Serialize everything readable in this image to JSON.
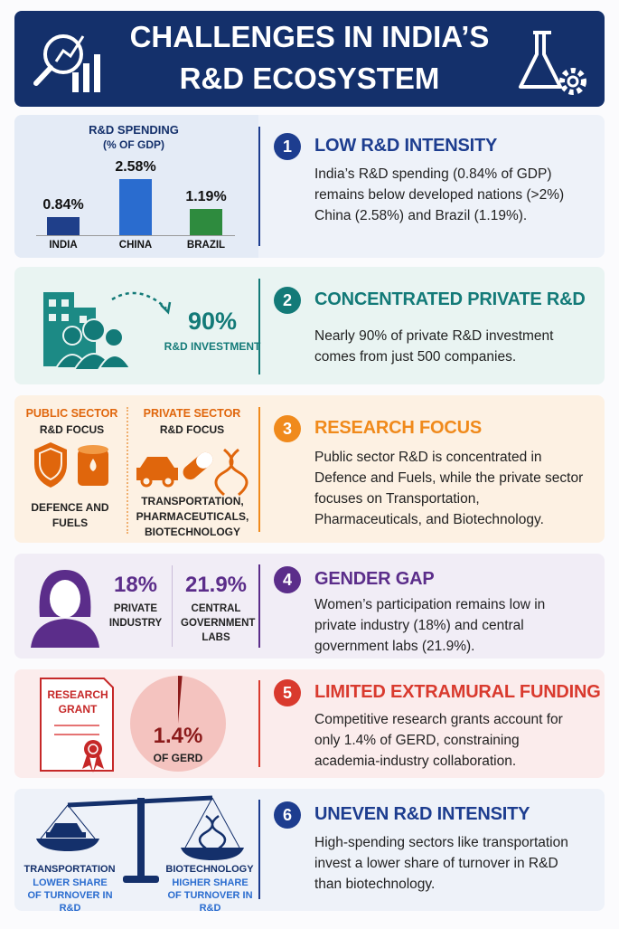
{
  "header": {
    "title_line1": "CHALLENGES IN INDIA’S",
    "title_line2": "R&D ECOSYSTEM"
  },
  "sections": [
    {
      "number": "1",
      "title": "LOW R&D INTENSITY",
      "body": "India’s R&D spending (0.84% of GDP) remains below developed nations (>2%) China (2.58%) and Brazil (1.19%).",
      "chart": {
        "type": "bar",
        "title": "R&D SPENDING",
        "subtitle": "(% OF GDP)",
        "categories": [
          "INDIA",
          "CHINA",
          "BRAZIL"
        ],
        "values": [
          0.84,
          2.58,
          1.19
        ],
        "value_labels": [
          "0.84%",
          "2.58%",
          "1.19%"
        ],
        "colors": [
          "#1f3f8a",
          "#2a6ccf",
          "#2e8b3e"
        ]
      }
    },
    {
      "number": "2",
      "title": "CONCENTRATED PRIVATE R&D",
      "body": "Nearly 90% of private R&D investment comes from just 500 companies.",
      "stat": "90%",
      "stat_label": "R&D INVESTMENT"
    },
    {
      "number": "3",
      "title": "RESEARCH FOCUS",
      "body": "Public sector R&D is concentrated in Defence and Fuels, while the private sector focuses on Transportation, Pharmaceuticals, and Biotechnology.",
      "public": {
        "heading": "PUBLIC SECTOR",
        "subheading": "R&D FOCUS",
        "areas": "DEFENCE AND FUELS"
      },
      "private": {
        "heading": "PRIVATE SECTOR",
        "subheading": "R&D FOCUS",
        "areas": "TRANSPORTATION, PHARMACEUTICALS, BIOTECHNOLOGY"
      }
    },
    {
      "number": "4",
      "title": "GENDER GAP",
      "body": "Women’s participation remains low in private industry (18%) and central government labs (21.9%).",
      "stats": [
        {
          "value": "18%",
          "label": "PRIVATE INDUSTRY"
        },
        {
          "value": "21.9%",
          "label": "CENTRAL GOVERNMENT LABS"
        }
      ]
    },
    {
      "number": "5",
      "title": "LIMITED EXTRAMURAL FUNDING",
      "body": "Competitive research grants account for only 1.4% of GERD, constraining academia-industry collaboration.",
      "certificate": "RESEARCH GRANT",
      "pie": {
        "type": "pie",
        "values": [
          1.4
        ],
        "value_labels": [
          "1.4%"
        ],
        "caption": "OF GERD"
      }
    },
    {
      "number": "6",
      "title": "UNEVEN R&D INTENSITY",
      "body": "High-spending sectors like transportation invest a lower share of turnover in R&D than biotechnology.",
      "left": {
        "sector": "TRANSPORTATION",
        "note": "LOWER SHARE OF TURNOVER IN R&D"
      },
      "right": {
        "sector": "BIOTECHNOLOGY",
        "note": "HIGHER SHARE OF TURNOVER IN R&D"
      }
    }
  ]
}
